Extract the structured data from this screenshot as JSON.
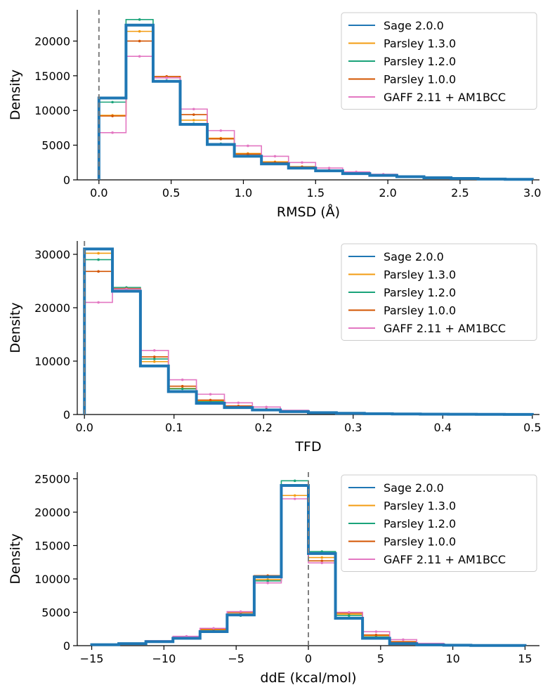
{
  "chart_data": [
    {
      "type": "line",
      "xlabel": "RMSD (Å)",
      "ylabel": "Density",
      "xlim": [
        -0.15,
        3.05
      ],
      "ylim": [
        0,
        24500
      ],
      "xticks": [
        0.0,
        0.5,
        1.0,
        1.5,
        2.0,
        2.5,
        3.0
      ],
      "xtick_labels": [
        "0.0",
        "0.5",
        "1.0",
        "1.5",
        "2.0",
        "2.5",
        "3.0"
      ],
      "yticks": [
        0,
        5000,
        10000,
        15000,
        20000
      ],
      "ytick_labels": [
        "0",
        "5000",
        "10000",
        "15000",
        "20000"
      ],
      "vline_x": 0,
      "legend_position": "upper-right",
      "bin_edges": [
        0.0,
        0.1875,
        0.375,
        0.5625,
        0.75,
        0.9375,
        1.125,
        1.3125,
        1.5,
        1.6875,
        1.875,
        2.0625,
        2.25,
        2.4375,
        2.625,
        2.8125,
        3.0
      ],
      "series": [
        {
          "name": "Sage 2.0.0",
          "color": "#1f77b4",
          "values": [
            11800,
            22300,
            14200,
            8000,
            5100,
            3400,
            2300,
            1700,
            1300,
            900,
            650,
            450,
            300,
            200,
            120,
            80
          ]
        },
        {
          "name": "Parsley 1.3.0",
          "color": "#f39c12",
          "values": [
            9300,
            21400,
            14900,
            8600,
            6000,
            3800,
            2600,
            1900,
            1400,
            1000,
            700,
            480,
            310,
            210,
            130,
            90
          ]
        },
        {
          "name": "Parsley 1.2.0",
          "color": "#1aa37a",
          "values": [
            11200,
            23100,
            14300,
            8100,
            5200,
            3500,
            2400,
            1750,
            1320,
            920,
            660,
            460,
            300,
            200,
            120,
            80
          ]
        },
        {
          "name": "Parsley 1.0.0",
          "color": "#d35400",
          "values": [
            9200,
            20000,
            14900,
            9400,
            5900,
            3700,
            2500,
            1850,
            1380,
            980,
            690,
            470,
            305,
            205,
            125,
            85
          ]
        },
        {
          "name": "GAFF 2.11 + AM1BCC",
          "color": "#e377c2",
          "values": [
            6800,
            17800,
            14700,
            10200,
            7100,
            4900,
            3400,
            2500,
            1700,
            1150,
            800,
            560,
            360,
            240,
            150,
            100
          ]
        }
      ]
    },
    {
      "type": "line",
      "xlabel": "TFD",
      "ylabel": "Density",
      "xlim": [
        -0.008,
        0.508
      ],
      "ylim": [
        0,
        32500
      ],
      "xticks": [
        0.0,
        0.1,
        0.2,
        0.3,
        0.4,
        0.5
      ],
      "xtick_labels": [
        "0.0",
        "0.1",
        "0.2",
        "0.3",
        "0.4",
        "0.5"
      ],
      "yticks": [
        0,
        10000,
        20000,
        30000
      ],
      "ytick_labels": [
        "0",
        "10000",
        "20000",
        "30000"
      ],
      "vline_x": 0,
      "legend_position": "upper-right",
      "bin_edges": [
        0.0,
        0.03125,
        0.0625,
        0.09375,
        0.125,
        0.15625,
        0.1875,
        0.21875,
        0.25,
        0.28125,
        0.3125,
        0.34375,
        0.375,
        0.40625,
        0.4375,
        0.46875,
        0.5
      ],
      "series": [
        {
          "name": "Sage 2.0.0",
          "color": "#1f77b4",
          "values": [
            31000,
            23100,
            9100,
            4300,
            2100,
            1300,
            850,
            550,
            350,
            230,
            150,
            100,
            70,
            50,
            35,
            20
          ]
        },
        {
          "name": "Parsley 1.3.0",
          "color": "#f39c12",
          "values": [
            30200,
            23500,
            9900,
            4900,
            2600,
            1500,
            950,
            600,
            380,
            250,
            160,
            110,
            75,
            50,
            35,
            20
          ]
        },
        {
          "name": "Parsley 1.2.0",
          "color": "#1aa37a",
          "values": [
            29000,
            23800,
            10400,
            4800,
            2400,
            1450,
            930,
            590,
            370,
            240,
            155,
            105,
            72,
            50,
            35,
            20
          ]
        },
        {
          "name": "Parsley 1.0.0",
          "color": "#d35400",
          "values": [
            26800,
            23600,
            10800,
            5300,
            2700,
            1600,
            1000,
            640,
            400,
            260,
            165,
            110,
            75,
            52,
            36,
            21
          ]
        },
        {
          "name": "GAFF 2.11 + AM1BCC",
          "color": "#e377c2",
          "values": [
            21000,
            23500,
            12000,
            6500,
            3800,
            2200,
            1400,
            800,
            450,
            280,
            180,
            120,
            80,
            55,
            38,
            22
          ]
        }
      ]
    },
    {
      "type": "line",
      "xlabel": "ddE (kcal/mol)",
      "ylabel": "Density",
      "xlim": [
        -16,
        16
      ],
      "ylim": [
        0,
        26000
      ],
      "xticks": [
        -15,
        -10,
        -5,
        0,
        5,
        10,
        15
      ],
      "xtick_labels": [
        "−15",
        "−10",
        "−5",
        "0",
        "5",
        "10",
        "15"
      ],
      "yticks": [
        0,
        5000,
        10000,
        15000,
        20000,
        25000
      ],
      "ytick_labels": [
        "0",
        "5000",
        "10000",
        "15000",
        "20000",
        "25000"
      ],
      "vline_x": 0,
      "legend_position": "upper-right",
      "bin_edges": [
        -15.0,
        -13.125,
        -11.25,
        -9.375,
        -7.5,
        -5.625,
        -3.75,
        -1.875,
        0.0,
        1.875,
        3.75,
        5.625,
        7.5,
        9.375,
        11.25,
        13.125,
        15.0
      ],
      "series": [
        {
          "name": "Sage 2.0.0",
          "color": "#1f77b4",
          "values": [
            150,
            300,
            600,
            1100,
            2100,
            4600,
            10300,
            24000,
            13800,
            4100,
            1100,
            300,
            120,
            60,
            30,
            20
          ]
        },
        {
          "name": "Parsley 1.3.0",
          "color": "#f39c12",
          "values": [
            160,
            320,
            650,
            1250,
            2400,
            4800,
            9900,
            22500,
            13200,
            4700,
            1500,
            500,
            200,
            80,
            40,
            25
          ]
        },
        {
          "name": "Parsley 1.2.0",
          "color": "#1aa37a",
          "values": [
            150,
            300,
            620,
            1150,
            2200,
            4500,
            9700,
            24700,
            14100,
            4500,
            1300,
            400,
            150,
            60,
            30,
            20
          ]
        },
        {
          "name": "Parsley 1.0.0",
          "color": "#d35400",
          "values": [
            170,
            340,
            700,
            1300,
            2500,
            5000,
            10500,
            24000,
            12700,
            4900,
            1600,
            600,
            250,
            100,
            45,
            25
          ]
        },
        {
          "name": "GAFF 2.11 + AM1BCC",
          "color": "#e377c2",
          "values": [
            180,
            360,
            750,
            1400,
            2600,
            5100,
            9400,
            22000,
            12400,
            5000,
            2100,
            900,
            350,
            150,
            60,
            30
          ]
        }
      ]
    }
  ]
}
